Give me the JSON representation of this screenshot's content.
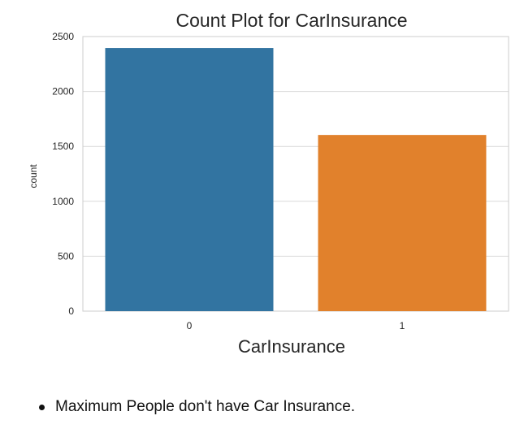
{
  "chart_data": {
    "type": "bar",
    "title": "Count Plot for CarInsurance",
    "xlabel": "CarInsurance",
    "ylabel": "count",
    "categories": [
      "0",
      "1"
    ],
    "values": [
      2396,
      1604
    ],
    "ylim": [
      0,
      2500
    ],
    "yticks": [
      "0",
      "500",
      "1000",
      "1500",
      "2000",
      "2500"
    ],
    "grid": true,
    "colors": [
      "#3274a1",
      "#e1812c"
    ]
  },
  "notes": [
    "Maximum People don't have Car Insurance."
  ]
}
